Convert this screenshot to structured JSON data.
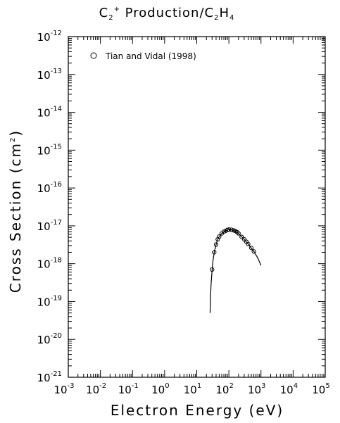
{
  "chart_data": {
    "type": "scatter",
    "title": {
      "main": "C",
      "sub1": "2",
      "sup1": "+",
      "mid": " Production/C",
      "sub2": "2",
      "mid2": "H",
      "sub3": "4"
    },
    "xlabel": "Electron Energy (eV)",
    "ylabel": {
      "main": "Cross Section (cm",
      "sup": "2",
      "end": ")"
    },
    "x_scale": "log",
    "y_scale": "log",
    "xlim": [
      0.001,
      100000
    ],
    "ylim": [
      1e-21,
      1e-12
    ],
    "x_tick_labels": [
      {
        "base": "10",
        "exp": "-3"
      },
      {
        "base": "10",
        "exp": "-2"
      },
      {
        "base": "10",
        "exp": "-1"
      },
      {
        "base": "10",
        "exp": "0"
      },
      {
        "base": "10",
        "exp": "1"
      },
      {
        "base": "10",
        "exp": "2"
      },
      {
        "base": "10",
        "exp": "3"
      },
      {
        "base": "10",
        "exp": "4"
      },
      {
        "base": "10",
        "exp": "5"
      }
    ],
    "y_tick_labels": [
      {
        "base": "10",
        "exp": "-21"
      },
      {
        "base": "10",
        "exp": "-20"
      },
      {
        "base": "10",
        "exp": "-19"
      },
      {
        "base": "10",
        "exp": "-18"
      },
      {
        "base": "10",
        "exp": "-17"
      },
      {
        "base": "10",
        "exp": "-16"
      },
      {
        "base": "10",
        "exp": "-15"
      },
      {
        "base": "10",
        "exp": "-14"
      },
      {
        "base": "10",
        "exp": "-13"
      },
      {
        "base": "10",
        "exp": "-12"
      }
    ],
    "legend": {
      "position": "top-left",
      "entries": [
        "Tian and Vidal (1998)"
      ]
    },
    "grid": false,
    "series": [
      {
        "name": "Tian and Vidal (1998)",
        "marker": "open-circle",
        "x": [
          30,
          35,
          40,
          45,
          50,
          60,
          70,
          80,
          90,
          100,
          120,
          140,
          160,
          180,
          200,
          250,
          300,
          350,
          400,
          500,
          600
        ],
        "y": [
          7e-19,
          2e-18,
          3.2e-18,
          4.4e-18,
          5.2e-18,
          6.3e-18,
          7e-18,
          7.4e-18,
          7.8e-18,
          8e-18,
          7.9e-18,
          7.6e-18,
          7.3e-18,
          6.8e-18,
          6.3e-18,
          5.1e-18,
          4.4e-18,
          3.8e-18,
          3.3e-18,
          2.6e-18,
          2.1e-18
        ]
      },
      {
        "name": "",
        "style": "line",
        "x": [
          26,
          27,
          28,
          30,
          32,
          35,
          40,
          45,
          50,
          60,
          70,
          80,
          90,
          100,
          120,
          150,
          200,
          300,
          400,
          600,
          800,
          1000
        ],
        "y": [
          5e-20,
          1.5e-19,
          3e-19,
          6.5e-19,
          1.2e-18,
          2e-18,
          3.2e-18,
          4.4e-18,
          5.2e-18,
          6.3e-18,
          7e-18,
          7.4e-18,
          7.8e-18,
          8e-18,
          7.9e-18,
          7.4e-18,
          6.3e-18,
          4.4e-18,
          3.3e-18,
          2.1e-18,
          1.4e-18,
          9e-19
        ]
      }
    ]
  }
}
